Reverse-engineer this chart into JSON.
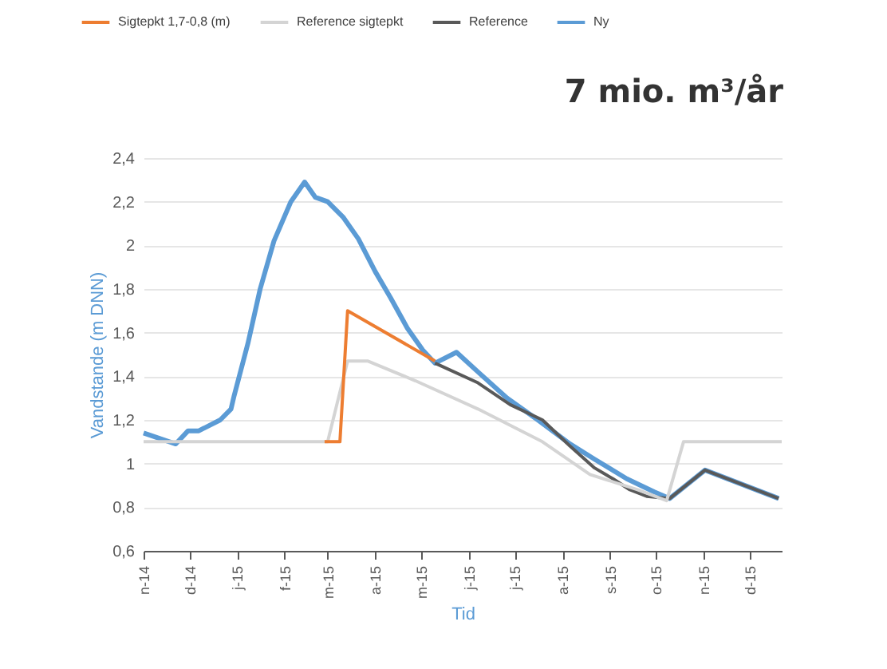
{
  "chart_data": {
    "type": "line",
    "title": "7 mio. m³/år",
    "xlabel": "Tid",
    "ylabel": "Vandstande (m DNN)",
    "xlim": [
      "2014-11-01",
      "2015-12-22"
    ],
    "xticks": [
      {
        "value": "2014-11-01",
        "label": "n-14"
      },
      {
        "value": "2014-12-01",
        "label": "d-14"
      },
      {
        "value": "2015-01-01",
        "label": "j-15"
      },
      {
        "value": "2015-02-01",
        "label": "f-15"
      },
      {
        "value": "2015-03-01",
        "label": "m-15"
      },
      {
        "value": "2015-04-01",
        "label": "a-15"
      },
      {
        "value": "2015-05-01",
        "label": "m-15"
      },
      {
        "value": "2015-06-01",
        "label": "j-15"
      },
      {
        "value": "2015-07-01",
        "label": "j-15"
      },
      {
        "value": "2015-08-01",
        "label": "a-15"
      },
      {
        "value": "2015-09-01",
        "label": "s-15"
      },
      {
        "value": "2015-10-01",
        "label": "o-15"
      },
      {
        "value": "2015-11-01",
        "label": "n-15"
      },
      {
        "value": "2015-12-01",
        "label": "d-15"
      }
    ],
    "ylim": [
      0.6,
      2.4
    ],
    "yticks": [
      {
        "value": 0.6,
        "label": "0,6"
      },
      {
        "value": 0.8,
        "label": "0,8"
      },
      {
        "value": 1,
        "label": "1"
      },
      {
        "value": 1.2,
        "label": "1,2"
      },
      {
        "value": 1.4,
        "label": "1,4"
      },
      {
        "value": 1.6,
        "label": "1,6"
      },
      {
        "value": 1.8,
        "label": "1,8"
      },
      {
        "value": 2,
        "label": "2"
      },
      {
        "value": 2.2,
        "label": "2,2"
      },
      {
        "value": 2.4,
        "label": "2,4"
      }
    ],
    "grid": "y",
    "legend": "top",
    "line_style": "solid",
    "marker": "none",
    "series": [
      {
        "name": "Sigtepkt 1,7-0,8 (m)",
        "color": "#ed7d31",
        "x": [
          "2015-02-27",
          "2015-03-09",
          "2015-03-14",
          "2015-05-10"
        ],
        "values": [
          1.1,
          1.1,
          1.7,
          1.47
        ]
      },
      {
        "name": "Reference sigtepkt",
        "color": "#d4d4d4",
        "x": [
          "2014-11-01",
          "2015-03-01",
          "2015-03-14",
          "2015-03-27",
          "2015-04-27",
          "2015-06-07",
          "2015-07-19",
          "2015-08-19",
          "2015-09-19",
          "2015-10-08",
          "2015-10-19",
          "2015-12-22"
        ],
        "values": [
          1.1,
          1.1,
          1.47,
          1.47,
          1.38,
          1.25,
          1.1,
          0.95,
          0.88,
          0.83,
          1.1,
          1.1
        ]
      },
      {
        "name": "Reference",
        "color": "#595959",
        "x": [
          "2015-05-10",
          "2015-06-07",
          "2015-06-28",
          "2015-07-19",
          "2015-08-06",
          "2015-08-22",
          "2015-09-03",
          "2015-09-14",
          "2015-09-25",
          "2015-10-10",
          "2015-11-02",
          "2015-12-20"
        ],
        "values": [
          1.46,
          1.37,
          1.27,
          1.2,
          1.08,
          0.98,
          0.93,
          0.88,
          0.85,
          0.84,
          0.97,
          0.84
        ]
      },
      {
        "name": "Ny",
        "color": "#5b9bd5",
        "x": [
          "2014-11-01",
          "2014-11-22",
          "2014-11-30",
          "2014-12-07",
          "2014-12-21",
          "2014-12-28",
          "2014-12-30",
          "2015-01-08",
          "2015-01-16",
          "2015-01-25",
          "2015-02-05",
          "2015-02-14",
          "2015-02-21",
          "2015-03-01",
          "2015-03-11",
          "2015-03-21",
          "2015-04-01",
          "2015-04-11",
          "2015-04-22",
          "2015-05-02",
          "2015-05-10",
          "2015-05-24",
          "2015-06-07",
          "2015-06-26",
          "2015-07-16",
          "2015-08-06",
          "2015-08-22",
          "2015-09-12",
          "2015-09-30",
          "2015-10-10",
          "2015-11-02",
          "2015-12-20"
        ],
        "values": [
          1.14,
          1.09,
          1.15,
          1.15,
          1.2,
          1.25,
          1.31,
          1.55,
          1.8,
          2.02,
          2.2,
          2.29,
          2.22,
          2.2,
          2.13,
          2.03,
          1.88,
          1.76,
          1.62,
          1.52,
          1.46,
          1.51,
          1.42,
          1.3,
          1.2,
          1.09,
          1.02,
          0.93,
          0.87,
          0.84,
          0.97,
          0.84
        ]
      }
    ]
  }
}
